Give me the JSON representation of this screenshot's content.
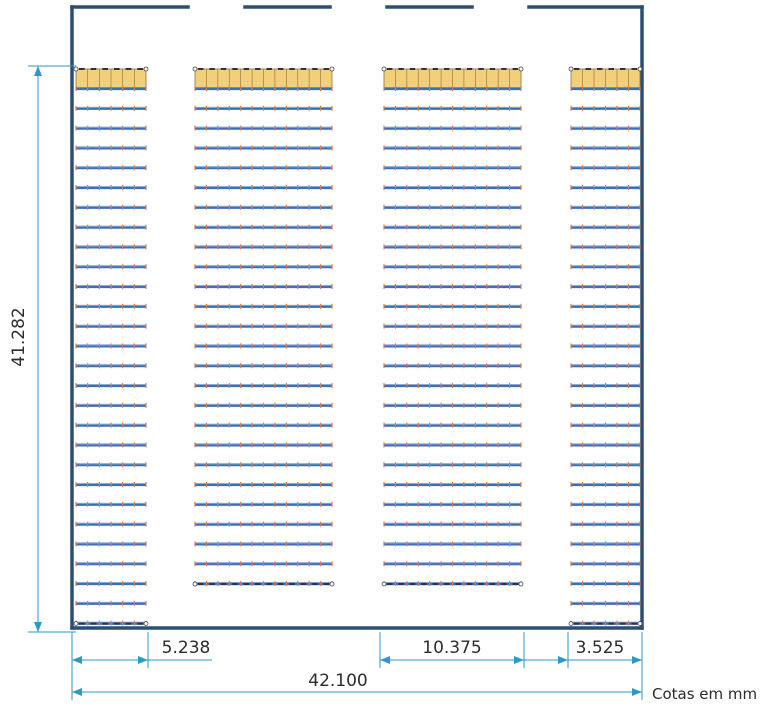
{
  "dimensions": {
    "total_height": "41.282",
    "total_width": "42.100",
    "aisle_width": "5.238",
    "double_rack_width": "10.375",
    "end_rack_width": "3.525"
  },
  "units_note": "Cotas em mm",
  "colors": {
    "wall": "#2d4e74",
    "beam": "#3b6fb8",
    "upright": "#e07a4a",
    "pallet": "#f3cf7a",
    "dimension_line": "#2b9ac8",
    "text": "#2c2c2c"
  }
}
